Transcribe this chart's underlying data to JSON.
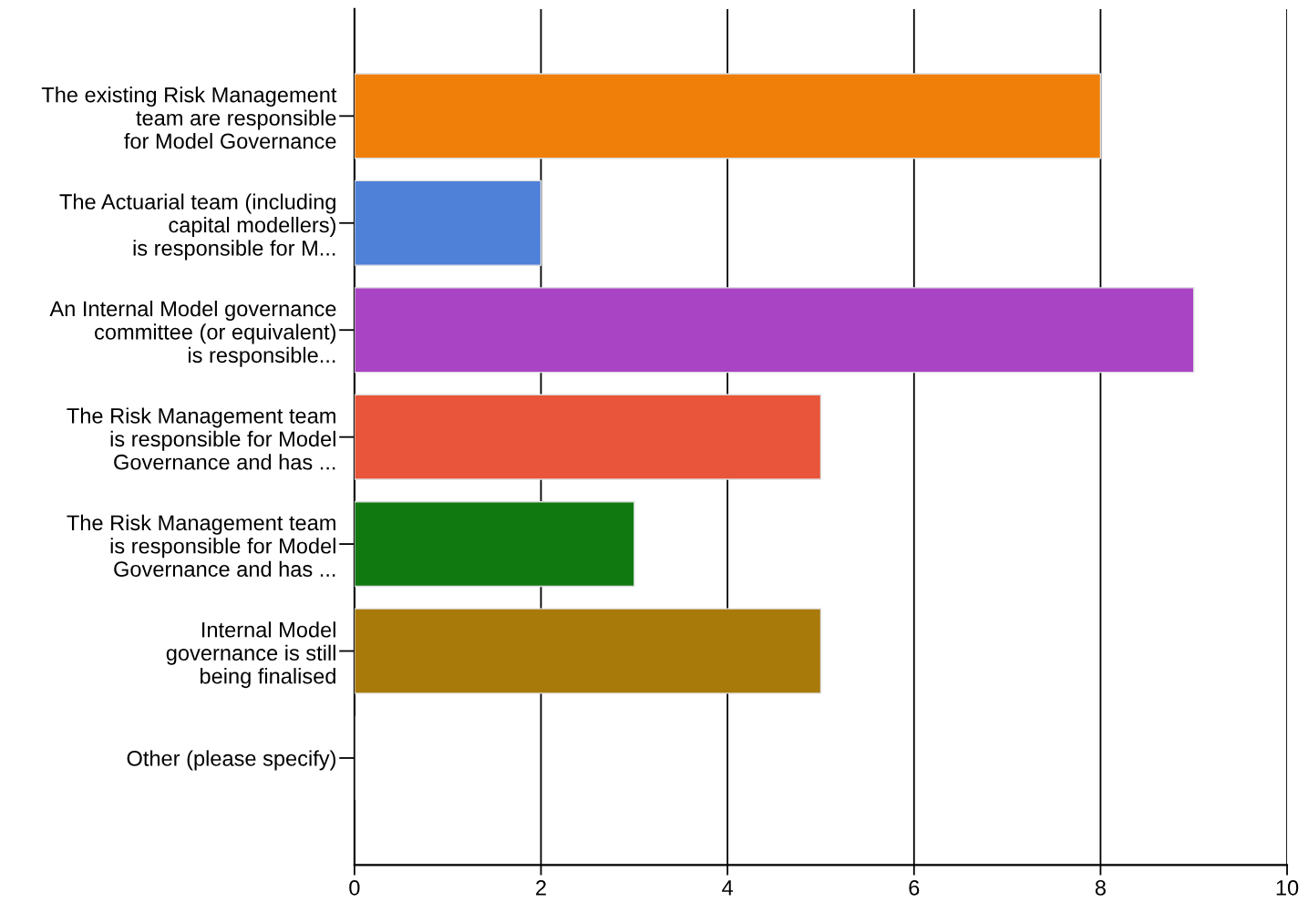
{
  "chart_data": {
    "type": "bar",
    "orientation": "horizontal",
    "categories": [
      "The existing Risk Management\nteam are responsible\nfor Model Governance",
      "The Actuarial team (including\ncapital modellers)\nis responsible for M...",
      "An Internal Model governance\ncommittee (or equivalent)\nis responsible...",
      "The Risk Management team\nis responsible for Model\nGovernance and has ...",
      "The Risk Management team\nis responsible for Model\nGovernance and has ...",
      "Internal Model\ngovernance is still\nbeing finalised",
      "Other (please specify)"
    ],
    "values": [
      8,
      2,
      9,
      5,
      3,
      5,
      0
    ],
    "colors": [
      "#f07f09",
      "#4f81d9",
      "#a944c4",
      "#e8553a",
      "#107a10",
      "#a87a0a",
      "#888888"
    ],
    "xlim": [
      0,
      10
    ],
    "xticks": [
      0,
      2,
      4,
      6,
      8,
      10
    ],
    "grid": "x"
  }
}
